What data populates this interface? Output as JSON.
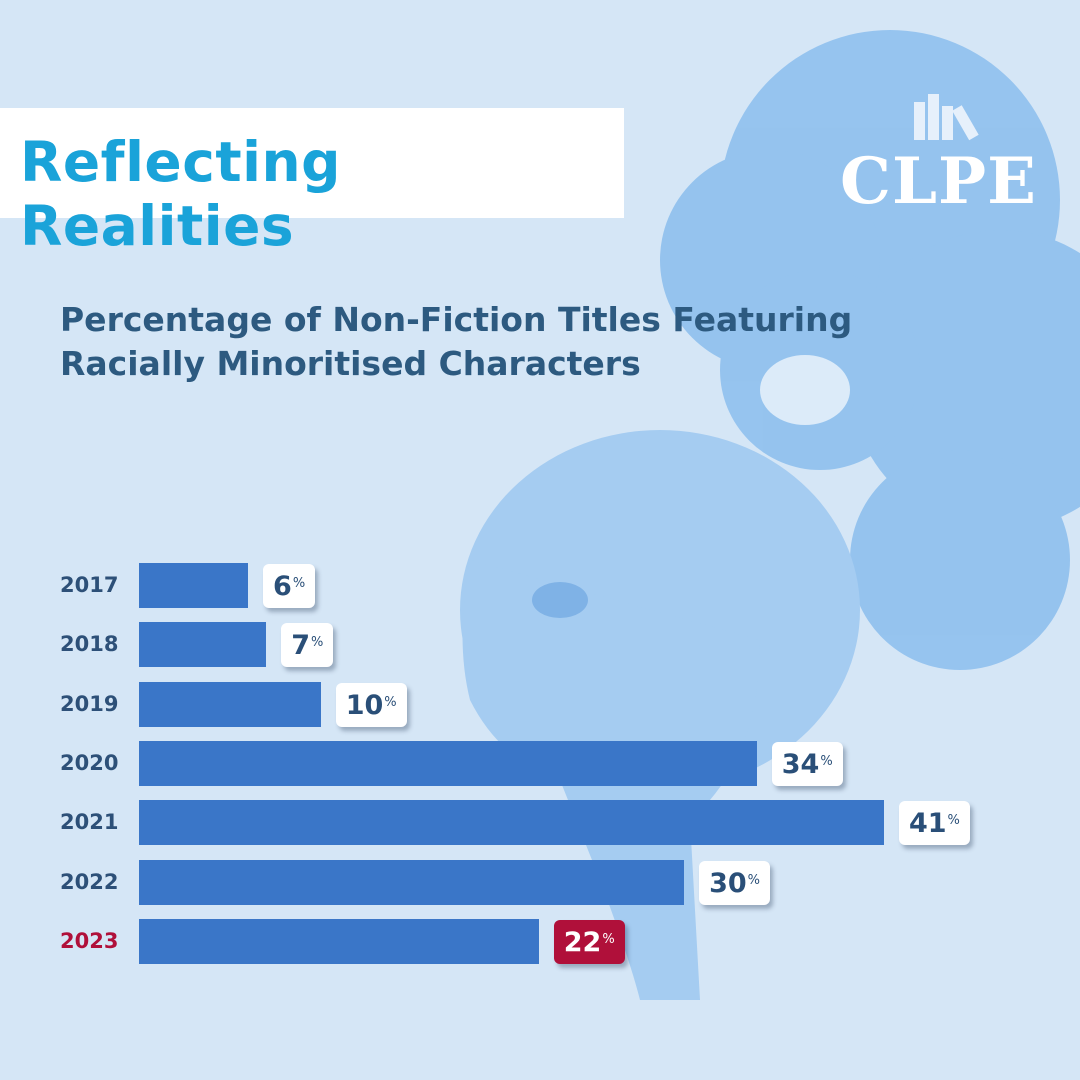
{
  "header": {
    "title": "Reflecting Realities",
    "logo_text": "CLPE"
  },
  "chart_data": {
    "type": "bar",
    "orientation": "horizontal",
    "title": "Percentage of Non-Fiction Titles Featuring Racially Minoritised Characters",
    "categories": [
      "2017",
      "2018",
      "2019",
      "2020",
      "2021",
      "2022",
      "2023"
    ],
    "values": [
      6,
      7,
      10,
      34,
      41,
      30,
      22
    ],
    "value_suffix": "%",
    "highlight": "2023",
    "colors": {
      "bar": "#3a76c8",
      "highlight": "#b0103a",
      "label_text": "#2a4f78",
      "title": "#2d5a80",
      "background": "#d5e6f6"
    }
  }
}
